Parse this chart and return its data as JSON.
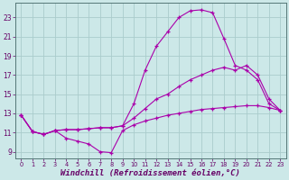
{
  "background_color": "#cce8e8",
  "grid_color": "#aacccc",
  "line_color": "#aa00aa",
  "marker": "+",
  "xlabel": "Windchill (Refroidissement éolien,°C)",
  "xlabel_fontsize": 6.5,
  "yticks": [
    9,
    11,
    13,
    15,
    17,
    19,
    21,
    23
  ],
  "xticks": [
    0,
    1,
    2,
    3,
    4,
    5,
    6,
    7,
    8,
    9,
    10,
    11,
    12,
    13,
    14,
    15,
    16,
    17,
    18,
    19,
    20,
    21,
    22,
    23
  ],
  "xlim": [
    -0.5,
    23.5
  ],
  "ylim": [
    8.3,
    24.5
  ],
  "series1_x": [
    0,
    1,
    2,
    3,
    4,
    5,
    6,
    7,
    8,
    9,
    10,
    11,
    12,
    13,
    14,
    15,
    16,
    17,
    18,
    19,
    20,
    21,
    22,
    23
  ],
  "series1_y": [
    12.8,
    11.1,
    10.8,
    11.2,
    10.4,
    10.1,
    9.8,
    9.0,
    8.9,
    11.2,
    11.8,
    12.2,
    12.5,
    12.8,
    13.0,
    13.2,
    13.4,
    13.5,
    13.6,
    13.7,
    13.8,
    13.8,
    13.6,
    13.3
  ],
  "series2_x": [
    0,
    1,
    2,
    3,
    4,
    5,
    6,
    7,
    8,
    9,
    10,
    11,
    12,
    13,
    14,
    15,
    16,
    17,
    18,
    19,
    20,
    21,
    22,
    23
  ],
  "series2_y": [
    12.8,
    11.1,
    10.8,
    11.2,
    11.3,
    11.3,
    11.4,
    11.5,
    11.5,
    11.7,
    12.5,
    13.5,
    14.5,
    15.0,
    15.8,
    16.5,
    17.0,
    17.5,
    17.8,
    17.5,
    18.0,
    17.0,
    14.5,
    13.3
  ],
  "series3_x": [
    0,
    1,
    2,
    3,
    4,
    5,
    6,
    7,
    8,
    9,
    10,
    11,
    12,
    13,
    14,
    15,
    16,
    17,
    18,
    19,
    20,
    21,
    22,
    23
  ],
  "series3_y": [
    12.8,
    11.1,
    10.8,
    11.2,
    11.3,
    11.3,
    11.4,
    11.5,
    11.5,
    11.7,
    14.0,
    17.5,
    20.0,
    21.5,
    23.0,
    23.7,
    23.8,
    23.5,
    20.8,
    18.0,
    17.5,
    16.5,
    14.0,
    13.3
  ]
}
